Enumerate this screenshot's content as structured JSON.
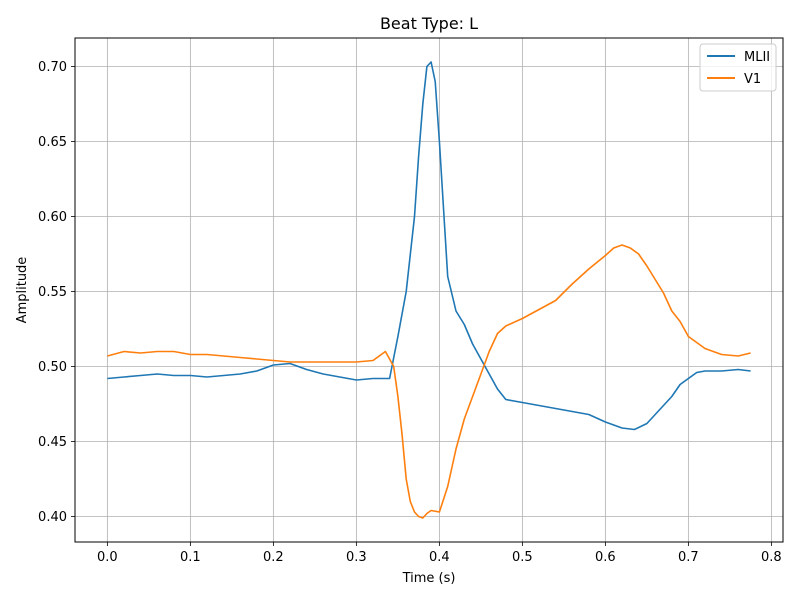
{
  "chart_data": {
    "type": "line",
    "title": "Beat Type: L",
    "xlabel": "Time (s)",
    "ylabel": "Amplitude",
    "xlim": [
      -0.039,
      0.814
    ],
    "ylim": [
      0.383,
      0.719
    ],
    "xticks": [
      "0.0",
      "0.1",
      "0.2",
      "0.3",
      "0.4",
      "0.5",
      "0.6",
      "0.7",
      "0.8"
    ],
    "yticks": [
      "0.40",
      "0.45",
      "0.50",
      "0.55",
      "0.60",
      "0.65",
      "0.70"
    ],
    "grid": true,
    "legend_position": "top-right",
    "series": [
      {
        "name": "MLII",
        "color": "#1f77b4",
        "x": [
          0.0,
          0.02,
          0.04,
          0.06,
          0.08,
          0.1,
          0.12,
          0.14,
          0.16,
          0.18,
          0.2,
          0.22,
          0.24,
          0.26,
          0.28,
          0.3,
          0.32,
          0.34,
          0.35,
          0.36,
          0.37,
          0.375,
          0.38,
          0.385,
          0.39,
          0.395,
          0.4,
          0.41,
          0.42,
          0.43,
          0.44,
          0.45,
          0.46,
          0.47,
          0.48,
          0.5,
          0.52,
          0.54,
          0.56,
          0.58,
          0.6,
          0.62,
          0.635,
          0.65,
          0.66,
          0.67,
          0.68,
          0.69,
          0.7,
          0.71,
          0.72,
          0.74,
          0.76,
          0.775
        ],
        "y": [
          0.492,
          0.493,
          0.494,
          0.495,
          0.494,
          0.494,
          0.493,
          0.494,
          0.495,
          0.497,
          0.501,
          0.502,
          0.498,
          0.495,
          0.493,
          0.491,
          0.492,
          0.492,
          0.52,
          0.55,
          0.6,
          0.64,
          0.675,
          0.7,
          0.703,
          0.69,
          0.65,
          0.56,
          0.537,
          0.528,
          0.515,
          0.505,
          0.495,
          0.485,
          0.478,
          0.476,
          0.474,
          0.472,
          0.47,
          0.468,
          0.463,
          0.459,
          0.458,
          0.462,
          0.468,
          0.474,
          0.48,
          0.488,
          0.492,
          0.496,
          0.497,
          0.497,
          0.498,
          0.497
        ]
      },
      {
        "name": "V1",
        "color": "#ff7f0e",
        "x": [
          0.0,
          0.02,
          0.04,
          0.06,
          0.08,
          0.1,
          0.12,
          0.14,
          0.16,
          0.18,
          0.2,
          0.22,
          0.24,
          0.26,
          0.28,
          0.3,
          0.32,
          0.335,
          0.345,
          0.35,
          0.355,
          0.36,
          0.365,
          0.37,
          0.375,
          0.38,
          0.385,
          0.39,
          0.4,
          0.41,
          0.42,
          0.43,
          0.44,
          0.45,
          0.46,
          0.47,
          0.48,
          0.5,
          0.52,
          0.54,
          0.56,
          0.58,
          0.6,
          0.61,
          0.62,
          0.63,
          0.64,
          0.65,
          0.66,
          0.67,
          0.68,
          0.69,
          0.7,
          0.72,
          0.74,
          0.76,
          0.775
        ],
        "y": [
          0.507,
          0.51,
          0.509,
          0.51,
          0.51,
          0.508,
          0.508,
          0.507,
          0.506,
          0.505,
          0.504,
          0.503,
          0.503,
          0.503,
          0.503,
          0.503,
          0.504,
          0.51,
          0.5,
          0.48,
          0.455,
          0.425,
          0.41,
          0.403,
          0.4,
          0.399,
          0.402,
          0.404,
          0.403,
          0.42,
          0.445,
          0.465,
          0.48,
          0.495,
          0.51,
          0.522,
          0.527,
          0.532,
          0.538,
          0.544,
          0.555,
          0.565,
          0.574,
          0.579,
          0.581,
          0.579,
          0.575,
          0.567,
          0.558,
          0.549,
          0.537,
          0.53,
          0.52,
          0.512,
          0.508,
          0.507,
          0.509
        ]
      }
    ]
  }
}
